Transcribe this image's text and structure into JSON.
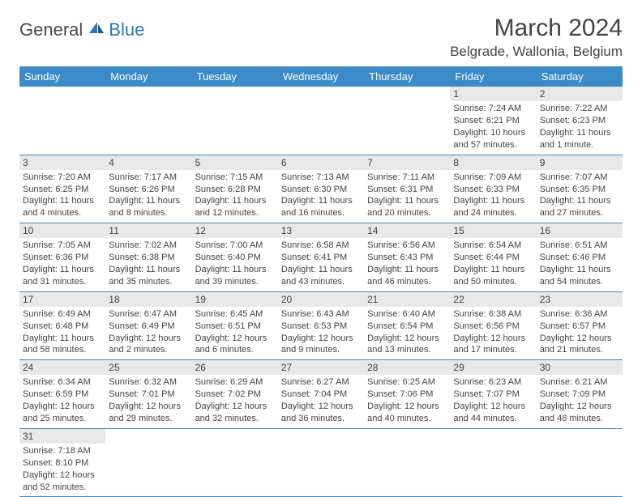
{
  "logo": {
    "main": "General",
    "accent": "Blue"
  },
  "title": "March 2024",
  "location": "Belgrade, Wallonia, Belgium",
  "colors": {
    "header_bg": "#3b8bc8",
    "header_text": "#ffffff",
    "daynum_bg": "#e8e8e8",
    "border": "#3b8bc8",
    "body_text": "#444444",
    "logo_gray": "#4a4a4a",
    "logo_blue": "#2a7ab8",
    "page_bg": "#ffffff"
  },
  "typography": {
    "title_fontsize": 30,
    "location_fontsize": 17,
    "dayhead_fontsize": 13,
    "daynum_fontsize": 12,
    "cell_fontsize": 11
  },
  "day_headers": [
    "Sunday",
    "Monday",
    "Tuesday",
    "Wednesday",
    "Thursday",
    "Friday",
    "Saturday"
  ],
  "weeks": [
    [
      {
        "empty": true
      },
      {
        "empty": true
      },
      {
        "empty": true
      },
      {
        "empty": true
      },
      {
        "empty": true
      },
      {
        "day": "1",
        "sunrise": "Sunrise: 7:24 AM",
        "sunset": "Sunset: 6:21 PM",
        "daylight1": "Daylight: 10 hours",
        "daylight2": "and 57 minutes."
      },
      {
        "day": "2",
        "sunrise": "Sunrise: 7:22 AM",
        "sunset": "Sunset: 6:23 PM",
        "daylight1": "Daylight: 11 hours",
        "daylight2": "and 1 minute."
      }
    ],
    [
      {
        "day": "3",
        "sunrise": "Sunrise: 7:20 AM",
        "sunset": "Sunset: 6:25 PM",
        "daylight1": "Daylight: 11 hours",
        "daylight2": "and 4 minutes."
      },
      {
        "day": "4",
        "sunrise": "Sunrise: 7:17 AM",
        "sunset": "Sunset: 6:26 PM",
        "daylight1": "Daylight: 11 hours",
        "daylight2": "and 8 minutes."
      },
      {
        "day": "5",
        "sunrise": "Sunrise: 7:15 AM",
        "sunset": "Sunset: 6:28 PM",
        "daylight1": "Daylight: 11 hours",
        "daylight2": "and 12 minutes."
      },
      {
        "day": "6",
        "sunrise": "Sunrise: 7:13 AM",
        "sunset": "Sunset: 6:30 PM",
        "daylight1": "Daylight: 11 hours",
        "daylight2": "and 16 minutes."
      },
      {
        "day": "7",
        "sunrise": "Sunrise: 7:11 AM",
        "sunset": "Sunset: 6:31 PM",
        "daylight1": "Daylight: 11 hours",
        "daylight2": "and 20 minutes."
      },
      {
        "day": "8",
        "sunrise": "Sunrise: 7:09 AM",
        "sunset": "Sunset: 6:33 PM",
        "daylight1": "Daylight: 11 hours",
        "daylight2": "and 24 minutes."
      },
      {
        "day": "9",
        "sunrise": "Sunrise: 7:07 AM",
        "sunset": "Sunset: 6:35 PM",
        "daylight1": "Daylight: 11 hours",
        "daylight2": "and 27 minutes."
      }
    ],
    [
      {
        "day": "10",
        "sunrise": "Sunrise: 7:05 AM",
        "sunset": "Sunset: 6:36 PM",
        "daylight1": "Daylight: 11 hours",
        "daylight2": "and 31 minutes."
      },
      {
        "day": "11",
        "sunrise": "Sunrise: 7:02 AM",
        "sunset": "Sunset: 6:38 PM",
        "daylight1": "Daylight: 11 hours",
        "daylight2": "and 35 minutes."
      },
      {
        "day": "12",
        "sunrise": "Sunrise: 7:00 AM",
        "sunset": "Sunset: 6:40 PM",
        "daylight1": "Daylight: 11 hours",
        "daylight2": "and 39 minutes."
      },
      {
        "day": "13",
        "sunrise": "Sunrise: 6:58 AM",
        "sunset": "Sunset: 6:41 PM",
        "daylight1": "Daylight: 11 hours",
        "daylight2": "and 43 minutes."
      },
      {
        "day": "14",
        "sunrise": "Sunrise: 6:56 AM",
        "sunset": "Sunset: 6:43 PM",
        "daylight1": "Daylight: 11 hours",
        "daylight2": "and 46 minutes."
      },
      {
        "day": "15",
        "sunrise": "Sunrise: 6:54 AM",
        "sunset": "Sunset: 6:44 PM",
        "daylight1": "Daylight: 11 hours",
        "daylight2": "and 50 minutes."
      },
      {
        "day": "16",
        "sunrise": "Sunrise: 6:51 AM",
        "sunset": "Sunset: 6:46 PM",
        "daylight1": "Daylight: 11 hours",
        "daylight2": "and 54 minutes."
      }
    ],
    [
      {
        "day": "17",
        "sunrise": "Sunrise: 6:49 AM",
        "sunset": "Sunset: 6:48 PM",
        "daylight1": "Daylight: 11 hours",
        "daylight2": "and 58 minutes."
      },
      {
        "day": "18",
        "sunrise": "Sunrise: 6:47 AM",
        "sunset": "Sunset: 6:49 PM",
        "daylight1": "Daylight: 12 hours",
        "daylight2": "and 2 minutes."
      },
      {
        "day": "19",
        "sunrise": "Sunrise: 6:45 AM",
        "sunset": "Sunset: 6:51 PM",
        "daylight1": "Daylight: 12 hours",
        "daylight2": "and 6 minutes."
      },
      {
        "day": "20",
        "sunrise": "Sunrise: 6:43 AM",
        "sunset": "Sunset: 6:53 PM",
        "daylight1": "Daylight: 12 hours",
        "daylight2": "and 9 minutes."
      },
      {
        "day": "21",
        "sunrise": "Sunrise: 6:40 AM",
        "sunset": "Sunset: 6:54 PM",
        "daylight1": "Daylight: 12 hours",
        "daylight2": "and 13 minutes."
      },
      {
        "day": "22",
        "sunrise": "Sunrise: 6:38 AM",
        "sunset": "Sunset: 6:56 PM",
        "daylight1": "Daylight: 12 hours",
        "daylight2": "and 17 minutes."
      },
      {
        "day": "23",
        "sunrise": "Sunrise: 6:36 AM",
        "sunset": "Sunset: 6:57 PM",
        "daylight1": "Daylight: 12 hours",
        "daylight2": "and 21 minutes."
      }
    ],
    [
      {
        "day": "24",
        "sunrise": "Sunrise: 6:34 AM",
        "sunset": "Sunset: 6:59 PM",
        "daylight1": "Daylight: 12 hours",
        "daylight2": "and 25 minutes."
      },
      {
        "day": "25",
        "sunrise": "Sunrise: 6:32 AM",
        "sunset": "Sunset: 7:01 PM",
        "daylight1": "Daylight: 12 hours",
        "daylight2": "and 29 minutes."
      },
      {
        "day": "26",
        "sunrise": "Sunrise: 6:29 AM",
        "sunset": "Sunset: 7:02 PM",
        "daylight1": "Daylight: 12 hours",
        "daylight2": "and 32 minutes."
      },
      {
        "day": "27",
        "sunrise": "Sunrise: 6:27 AM",
        "sunset": "Sunset: 7:04 PM",
        "daylight1": "Daylight: 12 hours",
        "daylight2": "and 36 minutes."
      },
      {
        "day": "28",
        "sunrise": "Sunrise: 6:25 AM",
        "sunset": "Sunset: 7:06 PM",
        "daylight1": "Daylight: 12 hours",
        "daylight2": "and 40 minutes."
      },
      {
        "day": "29",
        "sunrise": "Sunrise: 6:23 AM",
        "sunset": "Sunset: 7:07 PM",
        "daylight1": "Daylight: 12 hours",
        "daylight2": "and 44 minutes."
      },
      {
        "day": "30",
        "sunrise": "Sunrise: 6:21 AM",
        "sunset": "Sunset: 7:09 PM",
        "daylight1": "Daylight: 12 hours",
        "daylight2": "and 48 minutes."
      }
    ],
    [
      {
        "day": "31",
        "sunrise": "Sunrise: 7:18 AM",
        "sunset": "Sunset: 8:10 PM",
        "daylight1": "Daylight: 12 hours",
        "daylight2": "and 52 minutes."
      },
      {
        "empty": true
      },
      {
        "empty": true
      },
      {
        "empty": true
      },
      {
        "empty": true
      },
      {
        "empty": true
      },
      {
        "empty": true
      }
    ]
  ]
}
